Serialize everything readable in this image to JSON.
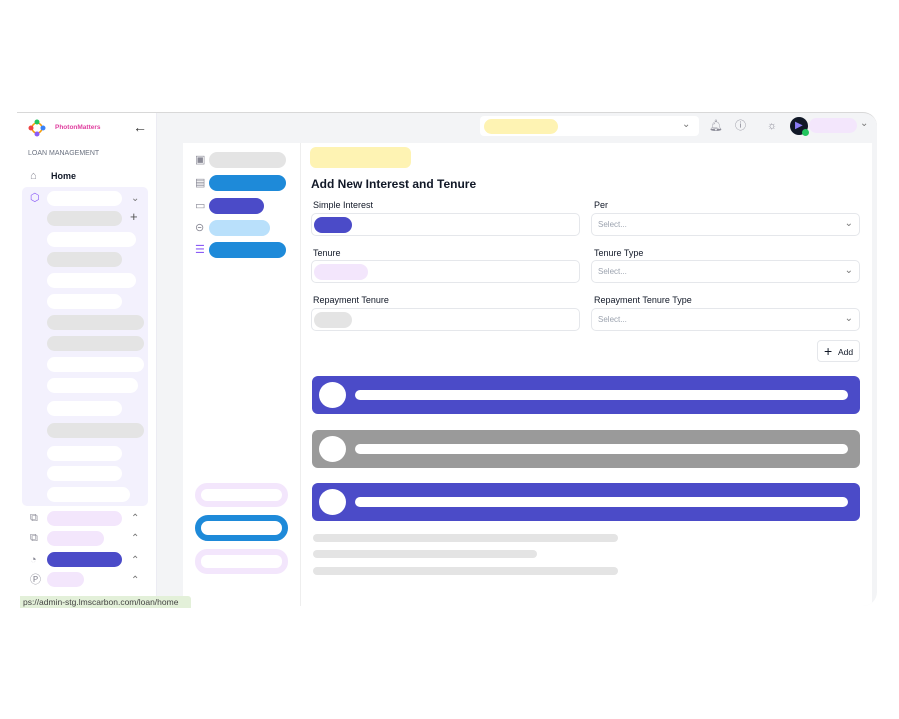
{
  "brand": {
    "name": "PhotonMatters"
  },
  "sidebar": {
    "section_title": "LOAN MANAGEMENT",
    "home_label": "Home",
    "icons": [
      "home-icon",
      "cube-icon",
      "copy-icon",
      "copy-icon",
      "chart-icon",
      "coin-icon"
    ]
  },
  "header": {
    "icons": [
      "bell-icon",
      "info-icon",
      "sun-icon"
    ],
    "online_status_color": "#22c55e"
  },
  "form": {
    "title": "Add New Interest and Tenure",
    "fields": [
      {
        "label": "Simple Interest"
      },
      {
        "label": "Per",
        "placeholder": "Select..."
      },
      {
        "label": "Tenure"
      },
      {
        "label": "Tenure Type",
        "placeholder": "Select..."
      },
      {
        "label": "Repayment Tenure"
      },
      {
        "label": "Repayment Tenure Type",
        "placeholder": "Select..."
      }
    ],
    "add_label": "Add"
  },
  "status_bar": {
    "url": "ps://admin-stg.lmscarbon.com/loan/home"
  },
  "colors": {
    "accent": "#4b4bc8",
    "blue": "#1e8ad9",
    "muted": "#9a9a9a"
  }
}
